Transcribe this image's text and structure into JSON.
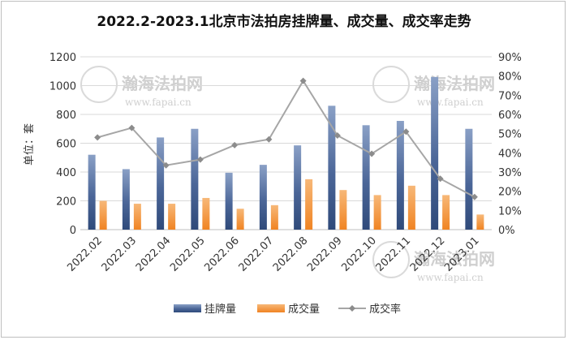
{
  "chart_data": {
    "type": "bar",
    "title": "2022.2-2023.1北京市法拍房挂牌量、成交量、成交率走势",
    "ylabel": "单位：套",
    "categories": [
      "2022.02",
      "2022.03",
      "2022.04",
      "2022.05",
      "2022.06",
      "2022.07",
      "2022.08",
      "2022.09",
      "2022.10",
      "2022.11",
      "2022.12",
      "2023.01"
    ],
    "ylim": [
      0,
      1200
    ],
    "y_ticks": [
      "0",
      "200",
      "400",
      "600",
      "800",
      "1000",
      "1200"
    ],
    "y2lim": [
      0,
      0.9
    ],
    "y2_ticks": [
      "0%",
      "10%",
      "20%",
      "30%",
      "40%",
      "50%",
      "60%",
      "70%",
      "80%",
      "90%"
    ],
    "grid": true,
    "legend_position": "bottom",
    "series": [
      {
        "name": "挂牌量",
        "kind": "bar",
        "axis": "left",
        "color": "#3e5a8c",
        "values": [
          520,
          420,
          640,
          700,
          395,
          450,
          585,
          860,
          725,
          755,
          1060,
          700
        ]
      },
      {
        "name": "成交量",
        "kind": "bar",
        "axis": "left",
        "color": "#f28c2a",
        "values": [
          200,
          180,
          180,
          220,
          145,
          170,
          350,
          275,
          240,
          305,
          240,
          105
        ]
      },
      {
        "name": "成交率",
        "kind": "line",
        "axis": "right",
        "color": "#a6a6a6",
        "values": [
          0.48,
          0.53,
          0.335,
          0.365,
          0.44,
          0.47,
          0.775,
          0.49,
          0.395,
          0.51,
          0.265,
          0.17
        ]
      }
    ]
  },
  "watermark": {
    "text": "瀚海法拍网",
    "url": "www.fapai.cn"
  }
}
